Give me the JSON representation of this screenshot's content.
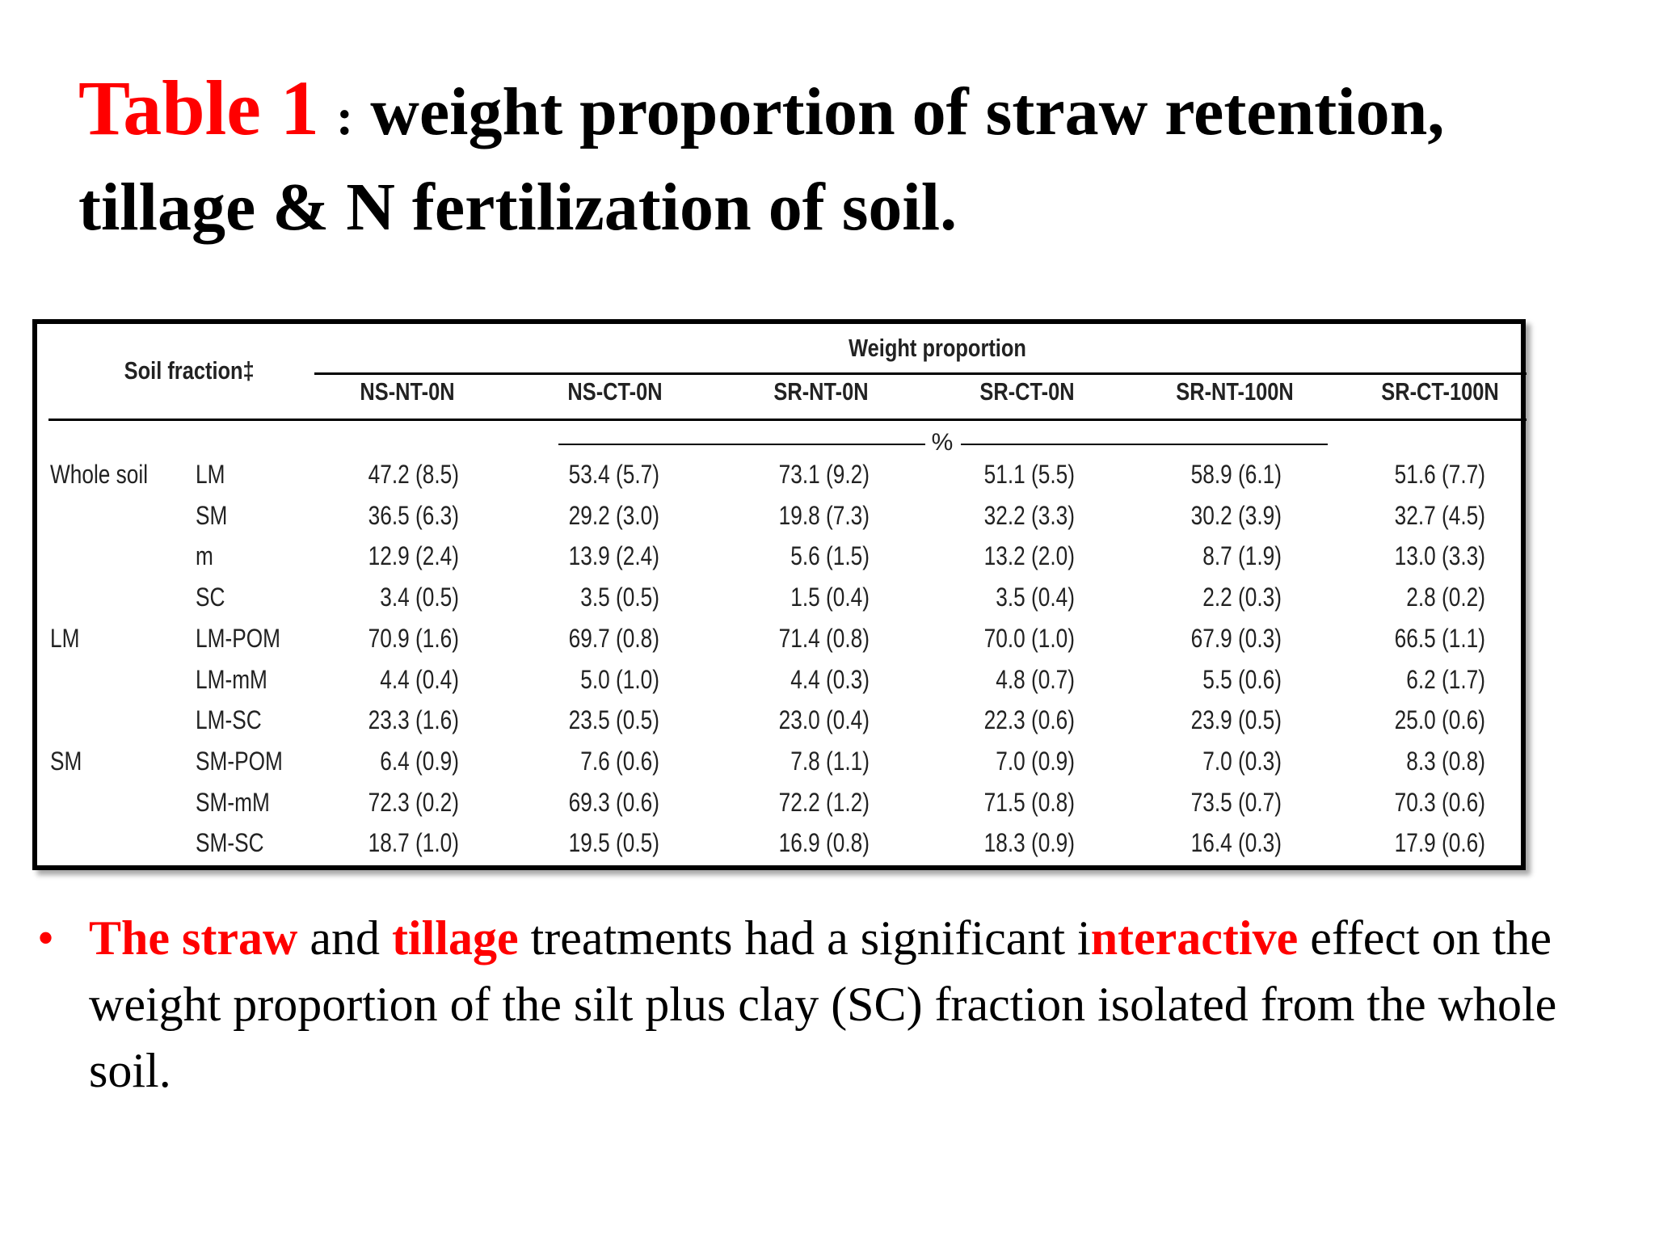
{
  "title": {
    "label": "Table 1",
    "separator": ":",
    "text": "weight proportion of  straw retention, tillage & N fertilization of soil."
  },
  "table": {
    "soil_fraction_header": "Soil fraction‡",
    "group_header": "Weight proportion",
    "unit": "%",
    "columns": [
      "NS-NT-0N",
      "NS-CT-0N",
      "SR-NT-0N",
      "SR-CT-0N",
      "SR-NT-100N",
      "SR-CT-100N"
    ],
    "rows": [
      {
        "group": "Whole soil",
        "fraction": "LM",
        "values": [
          "47.2 (8.5)",
          "53.4 (5.7)",
          "73.1 (9.2)",
          "51.1 (5.5)",
          "58.9 (6.1)",
          "51.6 (7.7)"
        ]
      },
      {
        "group": "",
        "fraction": "SM",
        "values": [
          "36.5 (6.3)",
          "29.2 (3.0)",
          "19.8 (7.3)",
          "32.2 (3.3)",
          "30.2 (3.9)",
          "32.7 (4.5)"
        ]
      },
      {
        "group": "",
        "fraction": "m",
        "values": [
          "12.9 (2.4)",
          "13.9 (2.4)",
          "5.6 (1.5)",
          "13.2 (2.0)",
          "8.7 (1.9)",
          "13.0 (3.3)"
        ]
      },
      {
        "group": "",
        "fraction": "SC",
        "values": [
          "3.4 (0.5)",
          "3.5 (0.5)",
          "1.5 (0.4)",
          "3.5 (0.4)",
          "2.2 (0.3)",
          "2.8 (0.2)"
        ]
      },
      {
        "group": "LM",
        "fraction": "LM-POM",
        "values": [
          "70.9 (1.6)",
          "69.7 (0.8)",
          "71.4 (0.8)",
          "70.0 (1.0)",
          "67.9 (0.3)",
          "66.5 (1.1)"
        ]
      },
      {
        "group": "",
        "fraction": "LM-mM",
        "values": [
          "4.4 (0.4)",
          "5.0 (1.0)",
          "4.4 (0.3)",
          "4.8 (0.7)",
          "5.5 (0.6)",
          "6.2 (1.7)"
        ]
      },
      {
        "group": "",
        "fraction": "LM-SC",
        "values": [
          "23.3 (1.6)",
          "23.5 (0.5)",
          "23.0 (0.4)",
          "22.3 (0.6)",
          "23.9 (0.5)",
          "25.0 (0.6)"
        ]
      },
      {
        "group": "SM",
        "fraction": "SM-POM",
        "values": [
          "6.4 (0.9)",
          "7.6 (0.6)",
          "7.8 (1.1)",
          "7.0 (0.9)",
          "7.0 (0.3)",
          "8.3 (0.8)"
        ]
      },
      {
        "group": "",
        "fraction": "SM-mM",
        "values": [
          "72.3 (0.2)",
          "69.3 (0.6)",
          "72.2 (1.2)",
          "71.5 (0.8)",
          "73.5 (0.7)",
          "70.3 (0.6)"
        ]
      },
      {
        "group": "",
        "fraction": "SM-SC",
        "values": [
          "18.7 (1.0)",
          "19.5 (0.5)",
          "16.9 (0.8)",
          "18.3 (0.9)",
          "16.4 (0.3)",
          "17.9 (0.6)"
        ]
      }
    ]
  },
  "bullet": {
    "symbol": "•",
    "parts": [
      {
        "text": "The straw",
        "highlight": true
      },
      {
        "text": " and ",
        "highlight": false
      },
      {
        "text": "tillage",
        "highlight": true
      },
      {
        "text": " treatments had a significant i",
        "highlight": false
      },
      {
        "text": "nteractive",
        "highlight": true
      },
      {
        "text": " effect on the weight proportion of the silt plus clay (SC) fraction isolated from the whole soil.",
        "highlight": false
      }
    ]
  },
  "colors": {
    "accent": "#ff0000",
    "text": "#000000"
  }
}
